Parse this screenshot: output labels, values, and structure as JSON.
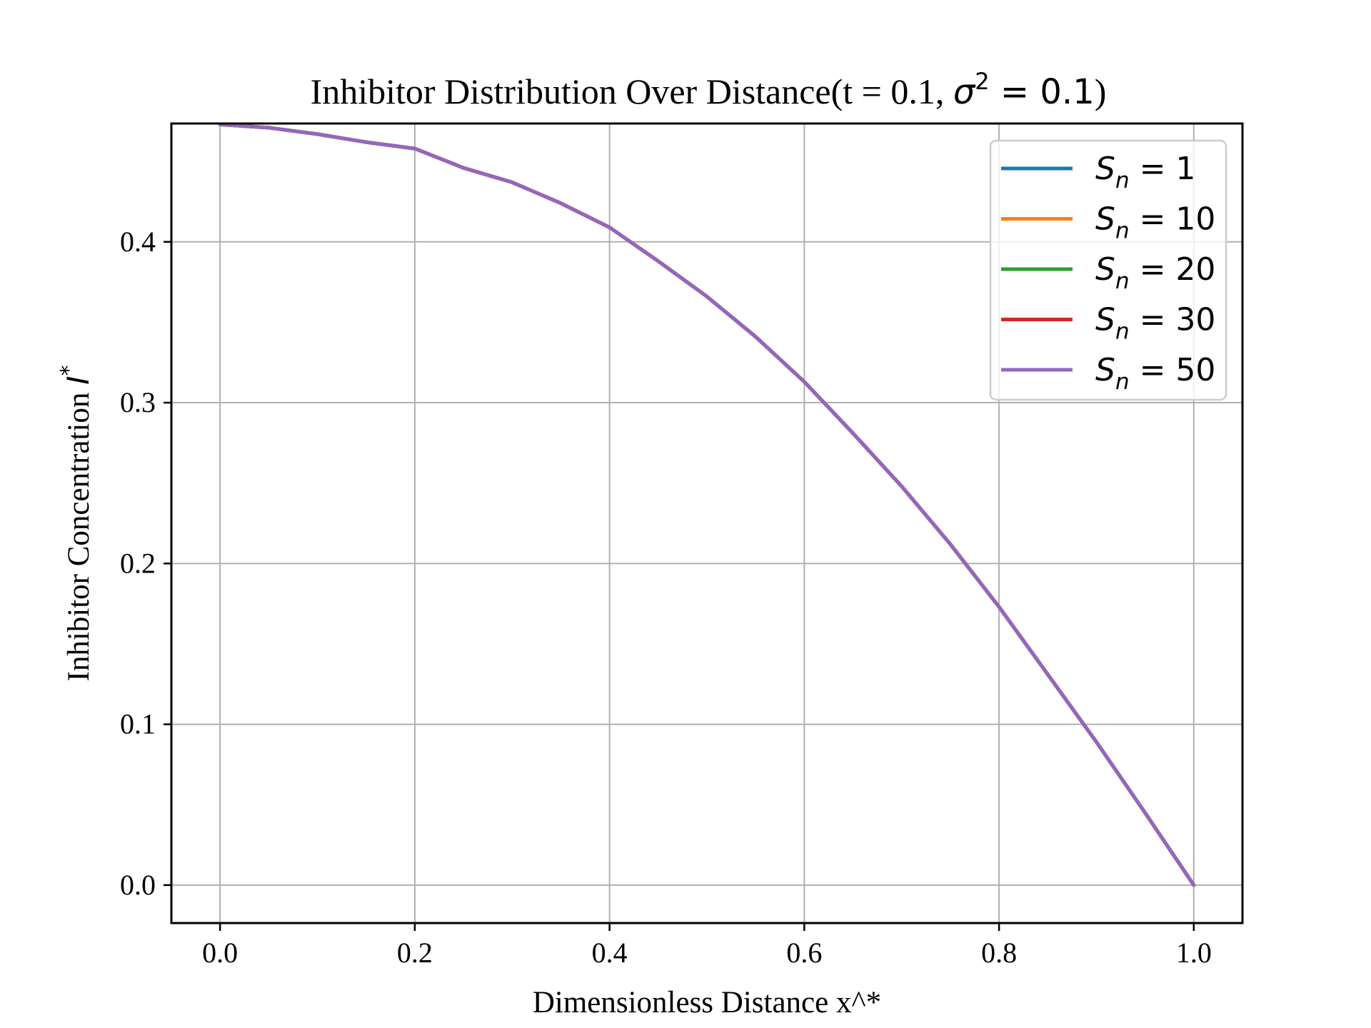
{
  "chart_data": {
    "type": "line",
    "title": "Inhibitor Distribution Over Distance(t = 0.1, σ² = 0.1)",
    "title_parts": {
      "prefix": "Inhibitor Distribution Over Distance(t = 0.1, ",
      "math_base": "σ",
      "math_sup": "2",
      "math_rest": " = 0.1",
      "suffix": ")"
    },
    "xlabel": "Dimensionless Distance x^*",
    "ylabel": "Inhibitor Concentration I*",
    "ylabel_parts": {
      "text": "Inhibitor Concentration ",
      "math": "I",
      "sup": "*"
    },
    "xlim": [
      -0.05,
      1.05
    ],
    "ylim": [
      -0.0236,
      0.4736
    ],
    "xticks": [
      0.0,
      0.2,
      0.4,
      0.6,
      0.8,
      1.0
    ],
    "xtick_labels": [
      "0.0",
      "0.2",
      "0.4",
      "0.6",
      "0.8",
      "1.0"
    ],
    "yticks": [
      0.0,
      0.1,
      0.2,
      0.3,
      0.4
    ],
    "ytick_labels": [
      "0.0",
      "0.1",
      "0.2",
      "0.3",
      "0.4"
    ],
    "grid": true,
    "legend_position": "top-right",
    "x": [
      0.0,
      0.05,
      0.1,
      0.15,
      0.2,
      0.25,
      0.3,
      0.35,
      0.4,
      0.45,
      0.5,
      0.55,
      0.6,
      0.65,
      0.7,
      0.75,
      0.8,
      0.85,
      0.9,
      0.95,
      1.0
    ],
    "series": [
      {
        "name": "S_n = 1",
        "label": {
          "base": "S",
          "sub": "n",
          "rest": " = 1"
        },
        "color": "#1f77b4",
        "values": [
          0.473,
          0.471,
          0.467,
          0.462,
          0.458,
          0.446,
          0.437,
          0.424,
          0.409,
          0.388,
          0.366,
          0.341,
          0.313,
          0.281,
          0.248,
          0.212,
          0.173,
          0.131,
          0.089,
          0.045,
          0.0
        ]
      },
      {
        "name": "S_n = 10",
        "label": {
          "base": "S",
          "sub": "n",
          "rest": " = 10"
        },
        "color": "#ff7f0e",
        "values": [
          0.473,
          0.471,
          0.467,
          0.462,
          0.458,
          0.446,
          0.437,
          0.424,
          0.409,
          0.388,
          0.366,
          0.341,
          0.313,
          0.281,
          0.248,
          0.212,
          0.173,
          0.131,
          0.089,
          0.045,
          0.0
        ]
      },
      {
        "name": "S_n = 20",
        "label": {
          "base": "S",
          "sub": "n",
          "rest": " = 20"
        },
        "color": "#2ca02c",
        "values": [
          0.473,
          0.471,
          0.467,
          0.462,
          0.458,
          0.446,
          0.437,
          0.424,
          0.409,
          0.388,
          0.366,
          0.341,
          0.313,
          0.281,
          0.248,
          0.212,
          0.173,
          0.131,
          0.089,
          0.045,
          0.0
        ]
      },
      {
        "name": "S_n = 30",
        "label": {
          "base": "S",
          "sub": "n",
          "rest": " = 30"
        },
        "color": "#d62728",
        "values": [
          0.473,
          0.471,
          0.467,
          0.462,
          0.458,
          0.446,
          0.437,
          0.424,
          0.409,
          0.388,
          0.366,
          0.341,
          0.313,
          0.281,
          0.248,
          0.212,
          0.173,
          0.131,
          0.089,
          0.045,
          0.0
        ]
      },
      {
        "name": "S_n = 50",
        "label": {
          "base": "S",
          "sub": "n",
          "rest": " = 50"
        },
        "color": "#9467bd",
        "values": [
          0.473,
          0.471,
          0.467,
          0.462,
          0.458,
          0.446,
          0.437,
          0.424,
          0.409,
          0.388,
          0.366,
          0.341,
          0.313,
          0.281,
          0.248,
          0.212,
          0.173,
          0.131,
          0.089,
          0.045,
          0.0
        ]
      }
    ]
  }
}
